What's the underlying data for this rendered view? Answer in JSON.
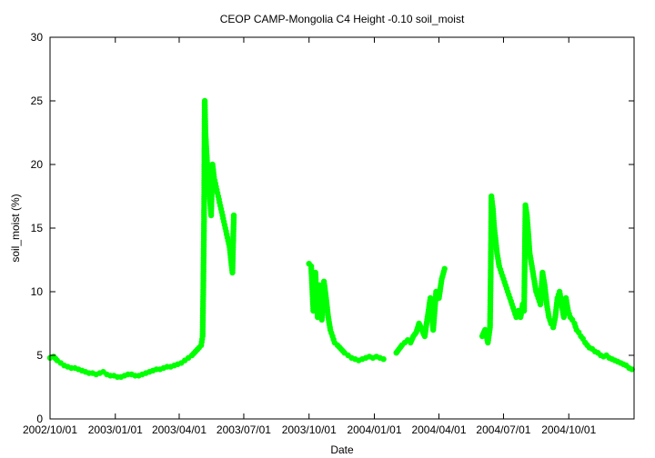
{
  "chart_data": {
    "type": "scatter",
    "title": "CEOP CAMP-Mongolia C4 Height -0.10 soil_moist",
    "xlabel": "Date",
    "ylabel": "soil_moist (%)",
    "xlim": [
      "2002-10-01",
      "2005-01-01"
    ],
    "ylim": [
      0,
      30
    ],
    "grid": false,
    "x_tick_labels": [
      "2002/10/01",
      "2003/01/01",
      "2003/04/01",
      "2003/07/01",
      "2003/10/01",
      "2004/01/01",
      "2004/04/01",
      "2004/07/01",
      "2004/10/01"
    ],
    "x_tick_dates": [
      "2002-10-01",
      "2003-01-01",
      "2003-04-01",
      "2003-07-01",
      "2003-10-01",
      "2004-01-01",
      "2004-04-01",
      "2004-07-01",
      "2004-10-01"
    ],
    "y_ticks": [
      0,
      5,
      10,
      15,
      20,
      25,
      30
    ],
    "series_color": "#00ff00",
    "segments": [
      {
        "x": [
          "2002-10-01",
          "2002-10-06",
          "2002-10-11",
          "2002-10-16",
          "2002-10-21",
          "2002-10-26",
          "2002-10-31",
          "2002-11-05",
          "2002-11-10",
          "2002-11-15",
          "2002-11-20",
          "2002-11-25",
          "2002-11-30",
          "2002-12-05",
          "2002-12-10",
          "2002-12-15",
          "2002-12-20",
          "2002-12-25",
          "2002-12-30",
          "2003-01-04",
          "2003-01-09",
          "2003-01-14",
          "2003-01-19",
          "2003-01-24",
          "2003-01-29",
          "2003-02-03",
          "2003-02-08",
          "2003-02-13",
          "2003-02-18",
          "2003-02-23",
          "2003-02-28",
          "2003-03-05",
          "2003-03-10",
          "2003-03-15",
          "2003-03-20",
          "2003-03-25",
          "2003-03-30",
          "2003-04-04",
          "2003-04-09",
          "2003-04-14",
          "2003-04-19",
          "2003-04-24",
          "2003-04-29",
          "2003-05-02",
          "2003-05-04",
          "2003-05-05",
          "2003-05-06",
          "2003-05-07",
          "2003-05-08",
          "2003-05-10",
          "2003-05-12",
          "2003-05-14",
          "2003-05-16",
          "2003-05-18",
          "2003-05-20",
          "2003-05-22",
          "2003-05-24",
          "2003-05-26",
          "2003-05-28",
          "2003-05-30",
          "2003-06-01",
          "2003-06-03",
          "2003-06-05",
          "2003-06-07",
          "2003-06-09",
          "2003-06-11",
          "2003-06-13",
          "2003-06-15",
          "2003-06-17"
        ],
        "y": [
          4.8,
          4.9,
          4.6,
          4.4,
          4.2,
          4.1,
          4.0,
          4.0,
          3.9,
          3.8,
          3.7,
          3.6,
          3.6,
          3.5,
          3.6,
          3.7,
          3.5,
          3.4,
          3.4,
          3.3,
          3.3,
          3.4,
          3.5,
          3.5,
          3.4,
          3.4,
          3.5,
          3.6,
          3.7,
          3.8,
          3.9,
          3.9,
          4.0,
          4.1,
          4.1,
          4.2,
          4.3,
          4.4,
          4.6,
          4.8,
          5.0,
          5.3,
          5.6,
          5.8,
          6.5,
          10.5,
          15.5,
          25.0,
          22.5,
          20.5,
          18.5,
          17.5,
          16.0,
          20.0,
          19.0,
          18.5,
          18.0,
          17.5,
          17.0,
          16.5,
          16.0,
          15.5,
          15.0,
          14.5,
          14.0,
          13.5,
          12.5,
          11.5,
          16.0
        ]
      },
      {
        "x": [
          "2003-10-01",
          "2003-10-04",
          "2003-10-07",
          "2003-10-10",
          "2003-10-13",
          "2003-10-16",
          "2003-10-19",
          "2003-10-22",
          "2003-10-25",
          "2003-10-28",
          "2003-10-31",
          "2003-11-03",
          "2003-11-06",
          "2003-11-10",
          "2003-11-15",
          "2003-11-20",
          "2003-11-25",
          "2003-11-30",
          "2003-12-05",
          "2003-12-10",
          "2003-12-15",
          "2003-12-20",
          "2003-12-25",
          "2003-12-30",
          "2004-01-04",
          "2004-01-09",
          "2004-01-14"
        ],
        "y": [
          12.2,
          12.0,
          8.5,
          11.5,
          8.0,
          10.5,
          7.8,
          10.8,
          9.5,
          8.0,
          7.0,
          6.5,
          6.0,
          5.8,
          5.5,
          5.2,
          5.0,
          4.8,
          4.7,
          4.6,
          4.7,
          4.8,
          4.9,
          4.8,
          4.9,
          4.8,
          4.7
        ]
      },
      {
        "x": [
          "2004-02-01",
          "2004-02-05",
          "2004-02-09",
          "2004-02-13",
          "2004-02-17",
          "2004-02-21",
          "2004-02-25",
          "2004-02-29",
          "2004-03-04",
          "2004-03-08",
          "2004-03-12",
          "2004-03-16",
          "2004-03-20",
          "2004-03-24",
          "2004-03-28",
          "2004-04-01",
          "2004-04-05",
          "2004-04-09"
        ],
        "y": [
          5.2,
          5.5,
          5.8,
          6.0,
          6.2,
          6.0,
          6.5,
          6.8,
          7.5,
          7.0,
          6.5,
          8.0,
          9.5,
          7.0,
          10.0,
          9.5,
          11.0,
          11.8
        ]
      },
      {
        "x": [
          "2004-06-01",
          "2004-06-05",
          "2004-06-09",
          "2004-06-12",
          "2004-06-13",
          "2004-06-14",
          "2004-06-16",
          "2004-06-18",
          "2004-06-20",
          "2004-06-22",
          "2004-06-25",
          "2004-06-28",
          "2004-07-01",
          "2004-07-04",
          "2004-07-07",
          "2004-07-10",
          "2004-07-13",
          "2004-07-16",
          "2004-07-19",
          "2004-07-22",
          "2004-07-25",
          "2004-07-28",
          "2004-07-30",
          "2004-08-01",
          "2004-08-03",
          "2004-08-05",
          "2004-08-07",
          "2004-08-10",
          "2004-08-13",
          "2004-08-16",
          "2004-08-19",
          "2004-08-22",
          "2004-08-25",
          "2004-08-28",
          "2004-08-31",
          "2004-09-03",
          "2004-09-06",
          "2004-09-09",
          "2004-09-12",
          "2004-09-15",
          "2004-09-18",
          "2004-09-21",
          "2004-09-24",
          "2004-09-27",
          "2004-09-30",
          "2004-10-03",
          "2004-10-06",
          "2004-10-09",
          "2004-10-12",
          "2004-10-15",
          "2004-10-18",
          "2004-10-21",
          "2004-10-24",
          "2004-10-27",
          "2004-10-30",
          "2004-11-03",
          "2004-11-07",
          "2004-11-11",
          "2004-11-15",
          "2004-11-19",
          "2004-11-23",
          "2004-11-27",
          "2004-12-01",
          "2004-12-05",
          "2004-12-09",
          "2004-12-13",
          "2004-12-17",
          "2004-12-21",
          "2004-12-25",
          "2004-12-29"
        ],
        "y": [
          6.5,
          7.0,
          6.0,
          7.2,
          11.5,
          17.5,
          16.5,
          15.0,
          14.0,
          13.0,
          12.0,
          11.5,
          11.0,
          10.5,
          10.0,
          9.5,
          9.0,
          8.5,
          8.0,
          8.5,
          8.0,
          9.0,
          8.5,
          16.8,
          16.0,
          14.5,
          13.0,
          12.0,
          11.0,
          10.0,
          9.5,
          9.0,
          11.5,
          10.5,
          9.0,
          8.0,
          7.5,
          7.2,
          8.0,
          9.5,
          10.0,
          9.0,
          8.0,
          9.5,
          8.5,
          8.0,
          7.8,
          7.5,
          7.0,
          6.8,
          6.5,
          6.3,
          6.0,
          5.8,
          5.6,
          5.5,
          5.3,
          5.2,
          5.0,
          4.9,
          5.0,
          4.8,
          4.7,
          4.6,
          4.5,
          4.4,
          4.3,
          4.2,
          4.0,
          3.9
        ]
      }
    ]
  }
}
